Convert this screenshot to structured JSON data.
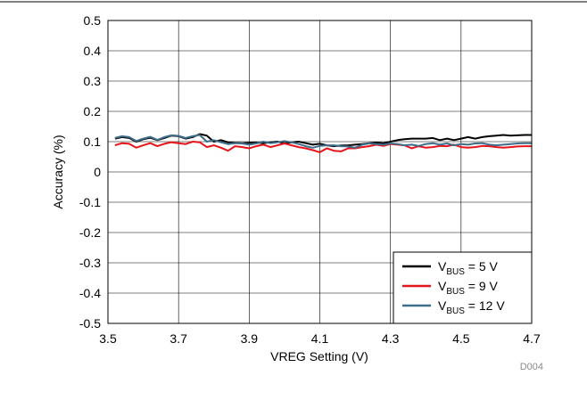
{
  "chart_data": {
    "type": "line",
    "title": "",
    "xlabel": "VREG Setting (V)",
    "ylabel": "Accuracy (%)",
    "xlim": [
      3.5,
      4.7
    ],
    "ylim": [
      -0.5,
      0.5
    ],
    "x_ticks": [
      "3.5",
      "3.7",
      "3.9",
      "4.1",
      "4.3",
      "4.5",
      "4.7"
    ],
    "y_ticks": [
      "0.5",
      "0.4",
      "0.3",
      "0.2",
      "0.1",
      "0",
      "-0.1",
      "-0.2",
      "-0.3",
      "-0.4",
      "-0.5"
    ],
    "x_tick_values": [
      3.5,
      3.7,
      3.9,
      4.1,
      4.3,
      4.5,
      4.7
    ],
    "y_tick_values": [
      0.5,
      0.4,
      0.3,
      0.2,
      0.1,
      0,
      -0.1,
      -0.2,
      -0.3,
      -0.4,
      -0.5
    ],
    "grid": true,
    "legend_position": "bottom-right",
    "legend": [
      {
        "prefix": "V",
        "sub": "BUS",
        "suffix": " = 5 V"
      },
      {
        "prefix": "V",
        "sub": "BUS",
        "suffix": " = 9 V"
      },
      {
        "prefix": "V",
        "sub": "BUS",
        "suffix": " = 12 V"
      }
    ],
    "x": [
      3.52,
      3.54,
      3.56,
      3.58,
      3.6,
      3.62,
      3.64,
      3.66,
      3.68,
      3.7,
      3.72,
      3.74,
      3.76,
      3.78,
      3.8,
      3.82,
      3.84,
      3.86,
      3.88,
      3.9,
      3.92,
      3.94,
      3.96,
      3.98,
      4.0,
      4.02,
      4.04,
      4.06,
      4.08,
      4.1,
      4.12,
      4.14,
      4.16,
      4.18,
      4.2,
      4.22,
      4.24,
      4.26,
      4.28,
      4.3,
      4.32,
      4.34,
      4.36,
      4.38,
      4.4,
      4.42,
      4.44,
      4.46,
      4.48,
      4.5,
      4.52,
      4.54,
      4.56,
      4.58,
      4.6,
      4.62,
      4.64,
      4.66,
      4.68,
      4.7
    ],
    "series": [
      {
        "name": "VBUS = 5 V",
        "color": "#000000",
        "values": [
          0.11,
          0.115,
          0.112,
          0.1,
          0.108,
          0.113,
          0.105,
          0.112,
          0.12,
          0.118,
          0.11,
          0.115,
          0.125,
          0.12,
          0.1,
          0.105,
          0.098,
          0.096,
          0.095,
          0.096,
          0.097,
          0.095,
          0.098,
          0.1,
          0.095,
          0.098,
          0.1,
          0.095,
          0.09,
          0.093,
          0.088,
          0.085,
          0.087,
          0.088,
          0.09,
          0.092,
          0.095,
          0.097,
          0.095,
          0.1,
          0.105,
          0.108,
          0.11,
          0.11,
          0.11,
          0.112,
          0.105,
          0.11,
          0.105,
          0.11,
          0.115,
          0.11,
          0.115,
          0.118,
          0.12,
          0.122,
          0.12,
          0.121,
          0.122,
          0.122
        ]
      },
      {
        "name": "VBUS = 9 V",
        "color": "#e8141b",
        "values": [
          0.088,
          0.095,
          0.093,
          0.08,
          0.088,
          0.095,
          0.085,
          0.093,
          0.098,
          0.095,
          0.092,
          0.1,
          0.098,
          0.082,
          0.088,
          0.08,
          0.07,
          0.085,
          0.082,
          0.078,
          0.085,
          0.09,
          0.082,
          0.088,
          0.094,
          0.088,
          0.082,
          0.078,
          0.072,
          0.065,
          0.078,
          0.07,
          0.068,
          0.078,
          0.078,
          0.082,
          0.085,
          0.09,
          0.086,
          0.092,
          0.09,
          0.088,
          0.078,
          0.085,
          0.08,
          0.082,
          0.086,
          0.085,
          0.09,
          0.082,
          0.08,
          0.082,
          0.086,
          0.085,
          0.082,
          0.08,
          0.082,
          0.084,
          0.085,
          0.085
        ]
      },
      {
        "name": "VBUS = 12 V",
        "color": "#3e6d8a",
        "values": [
          0.112,
          0.118,
          0.115,
          0.102,
          0.11,
          0.116,
          0.106,
          0.115,
          0.121,
          0.119,
          0.112,
          0.118,
          0.122,
          0.1,
          0.105,
          0.098,
          0.092,
          0.095,
          0.094,
          0.09,
          0.094,
          0.1,
          0.095,
          0.098,
          0.102,
          0.098,
          0.092,
          0.085,
          0.08,
          0.086,
          0.088,
          0.088,
          0.085,
          0.084,
          0.08,
          0.09,
          0.094,
          0.092,
          0.09,
          0.094,
          0.092,
          0.088,
          0.09,
          0.086,
          0.092,
          0.095,
          0.09,
          0.094,
          0.088,
          0.092,
          0.09,
          0.094,
          0.095,
          0.09,
          0.088,
          0.09,
          0.092,
          0.094,
          0.095,
          0.095
        ]
      }
    ],
    "watermark": "D004"
  }
}
